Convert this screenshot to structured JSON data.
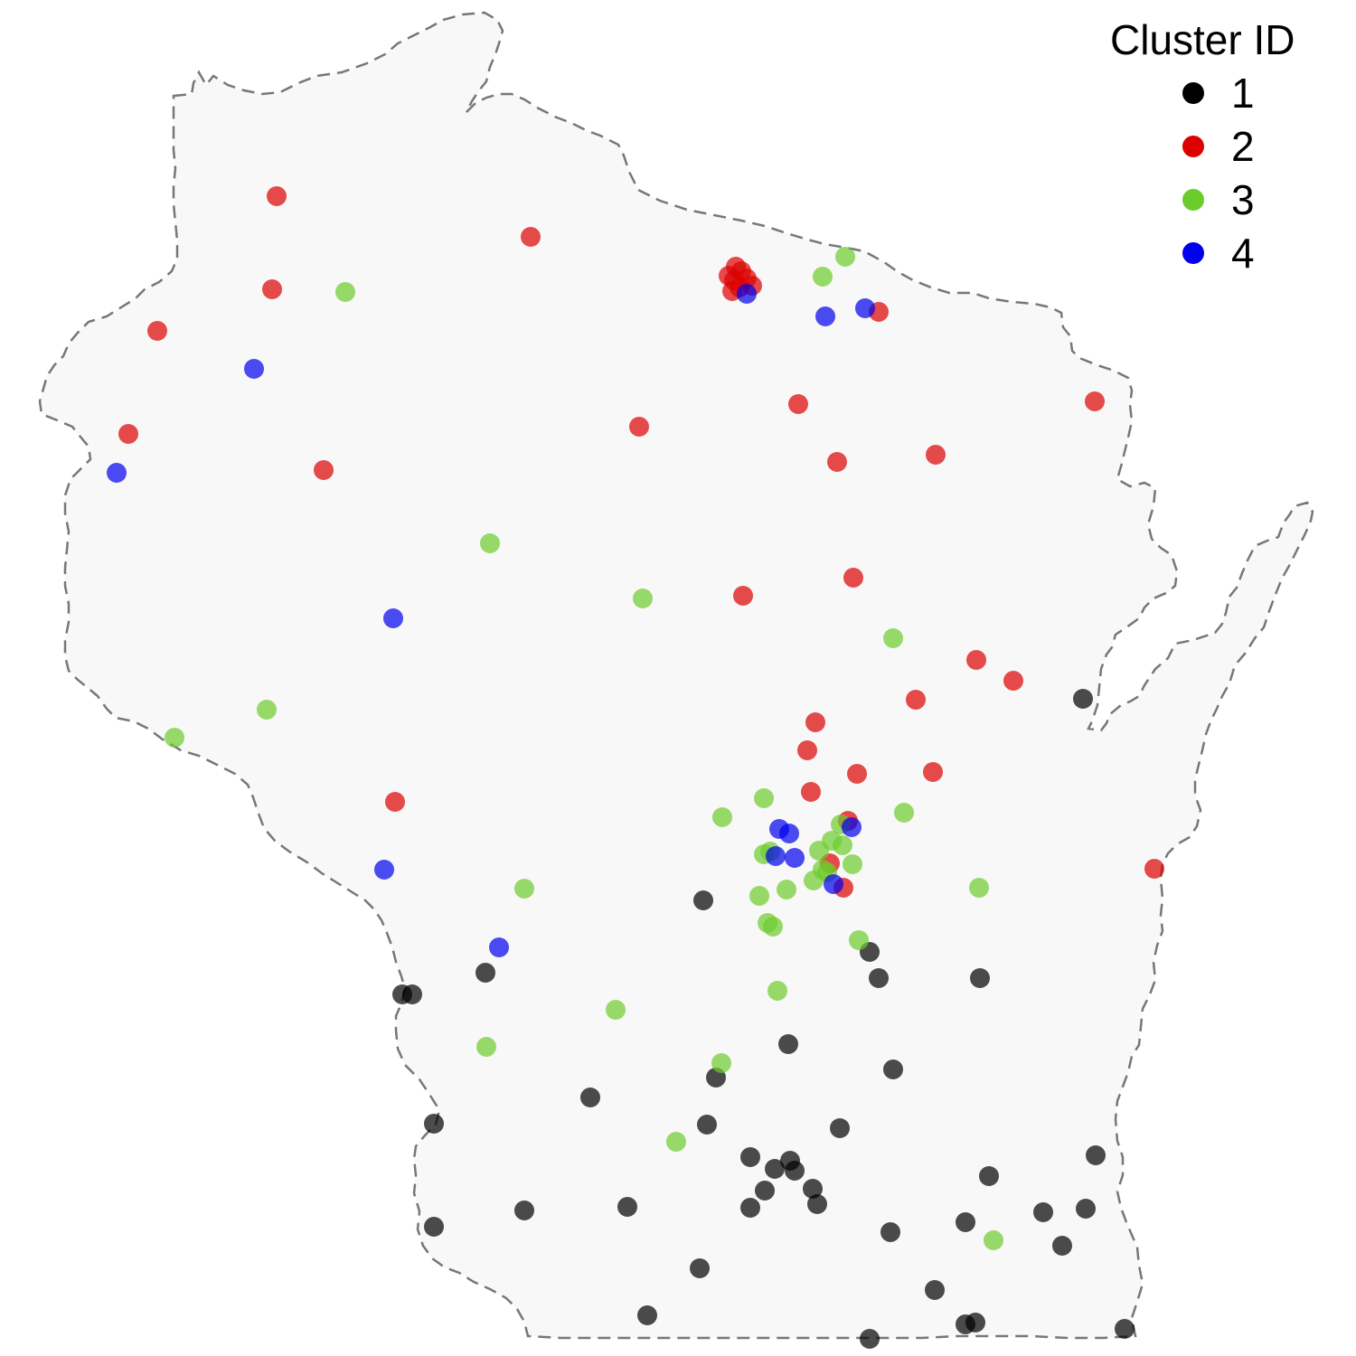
{
  "legend": {
    "title": "Cluster ID",
    "items": [
      {
        "label": "1",
        "color": "#000000"
      },
      {
        "label": "2",
        "color": "#dd0000"
      },
      {
        "label": "3",
        "color": "#6ccc2c"
      },
      {
        "label": "4",
        "color": "#0000ee"
      }
    ]
  },
  "region": {
    "name": "Wisconsin",
    "fill": "#f8f8f8",
    "outline_color": "#777777",
    "outline_style": "dashed"
  },
  "points": {
    "cluster_1": [
      [
        1198,
        773
      ],
      [
        778,
        996
      ],
      [
        537,
        1076
      ],
      [
        445,
        1100
      ],
      [
        456,
        1100
      ],
      [
        962,
        1053
      ],
      [
        972,
        1082
      ],
      [
        1084,
        1082
      ],
      [
        872,
        1155
      ],
      [
        988,
        1183
      ],
      [
        792,
        1192
      ],
      [
        653,
        1214
      ],
      [
        480,
        1243
      ],
      [
        782,
        1244
      ],
      [
        929,
        1248
      ],
      [
        830,
        1280
      ],
      [
        857,
        1293
      ],
      [
        874,
        1284
      ],
      [
        879,
        1295
      ],
      [
        1212,
        1278
      ],
      [
        1094,
        1301
      ],
      [
        846,
        1317
      ],
      [
        899,
        1315
      ],
      [
        904,
        1332
      ],
      [
        830,
        1336
      ],
      [
        694,
        1335
      ],
      [
        580,
        1339
      ],
      [
        480,
        1357
      ],
      [
        985,
        1363
      ],
      [
        1068,
        1352
      ],
      [
        1154,
        1341
      ],
      [
        1201,
        1337
      ],
      [
        1175,
        1378
      ],
      [
        774,
        1403
      ],
      [
        1034,
        1427
      ],
      [
        716,
        1455
      ],
      [
        1068,
        1465
      ],
      [
        1079,
        1463
      ],
      [
        962,
        1481
      ],
      [
        1244,
        1470
      ]
    ],
    "cluster_2": [
      [
        306,
        217
      ],
      [
        587,
        262
      ],
      [
        301,
        320
      ],
      [
        174,
        366
      ],
      [
        142,
        480
      ],
      [
        358,
        520
      ],
      [
        814,
        295
      ],
      [
        820,
        300
      ],
      [
        812,
        310
      ],
      [
        826,
        308
      ],
      [
        810,
        322
      ],
      [
        818,
        318
      ],
      [
        832,
        316
      ],
      [
        806,
        305
      ],
      [
        972,
        345
      ],
      [
        883,
        447
      ],
      [
        707,
        472
      ],
      [
        926,
        511
      ],
      [
        1035,
        503
      ],
      [
        1211,
        444
      ],
      [
        944,
        639
      ],
      [
        822,
        659
      ],
      [
        1080,
        730
      ],
      [
        1121,
        753
      ],
      [
        1013,
        774
      ],
      [
        902,
        799
      ],
      [
        893,
        830
      ],
      [
        948,
        856
      ],
      [
        897,
        876
      ],
      [
        1032,
        854
      ],
      [
        437,
        887
      ],
      [
        938,
        908
      ],
      [
        918,
        955
      ],
      [
        933,
        982
      ],
      [
        1277,
        961
      ]
    ],
    "cluster_3": [
      [
        382,
        323
      ],
      [
        910,
        306
      ],
      [
        935,
        284
      ],
      [
        542,
        601
      ],
      [
        711,
        662
      ],
      [
        988,
        706
      ],
      [
        295,
        785
      ],
      [
        193,
        816
      ],
      [
        845,
        883
      ],
      [
        799,
        904
      ],
      [
        1000,
        899
      ],
      [
        930,
        912
      ],
      [
        920,
        930
      ],
      [
        932,
        935
      ],
      [
        906,
        941
      ],
      [
        845,
        945
      ],
      [
        852,
        942
      ],
      [
        943,
        956
      ],
      [
        915,
        965
      ],
      [
        900,
        974
      ],
      [
        910,
        962
      ],
      [
        870,
        984
      ],
      [
        840,
        991
      ],
      [
        849,
        1021
      ],
      [
        855,
        1025
      ],
      [
        580,
        983
      ],
      [
        1083,
        982
      ],
      [
        950,
        1040
      ],
      [
        860,
        1096
      ],
      [
        681,
        1117
      ],
      [
        538,
        1158
      ],
      [
        798,
        1176
      ],
      [
        748,
        1263
      ],
      [
        1099,
        1372
      ]
    ],
    "cluster_4": [
      [
        826,
        325
      ],
      [
        913,
        350
      ],
      [
        957,
        341
      ],
      [
        281,
        408
      ],
      [
        129,
        523
      ],
      [
        435,
        684
      ],
      [
        862,
        917
      ],
      [
        873,
        922
      ],
      [
        858,
        947
      ],
      [
        879,
        949
      ],
      [
        942,
        915
      ],
      [
        922,
        978
      ],
      [
        425,
        962
      ],
      [
        552,
        1048
      ]
    ]
  }
}
